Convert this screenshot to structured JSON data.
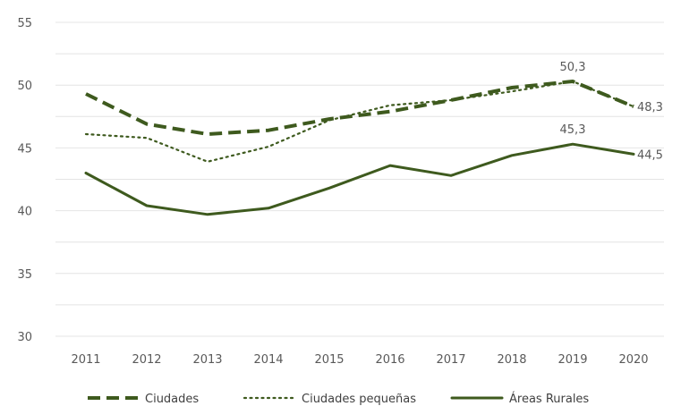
{
  "chart_data": {
    "type": "line",
    "title": "",
    "xlabel": "",
    "ylabel": "",
    "categories": [
      "2011",
      "2012",
      "2013",
      "2014",
      "2015",
      "2016",
      "2017",
      "2018",
      "2019",
      "2020"
    ],
    "ylim": [
      30,
      55
    ],
    "yticks": [
      "30",
      "35",
      "40",
      "45",
      "50",
      "55"
    ],
    "grid": true,
    "legend_position": "bottom",
    "series": [
      {
        "name": "Ciudades",
        "style": "dashed",
        "color": "#3e5a1e",
        "values": [
          49.3,
          46.9,
          46.1,
          46.4,
          47.3,
          47.9,
          48.8,
          49.8,
          50.3,
          48.3
        ]
      },
      {
        "name": "Ciudades pequeñas",
        "style": "dotted",
        "color": "#3e5a1e",
        "values": [
          46.1,
          45.8,
          43.9,
          45.1,
          47.2,
          48.4,
          48.8,
          49.5,
          50.3,
          48.3
        ]
      },
      {
        "name": "Áreas Rurales",
        "style": "solid",
        "color": "#3e5a1e",
        "values": [
          43.0,
          40.4,
          39.7,
          40.2,
          41.8,
          43.6,
          42.8,
          44.4,
          45.3,
          44.5
        ]
      }
    ],
    "data_labels": [
      {
        "series": 0,
        "index": 8,
        "text": "50,3"
      },
      {
        "series": 0,
        "index": 9,
        "text": "48,3"
      },
      {
        "series": 2,
        "index": 8,
        "text": "45,3"
      },
      {
        "series": 2,
        "index": 9,
        "text": "44,5"
      }
    ]
  }
}
